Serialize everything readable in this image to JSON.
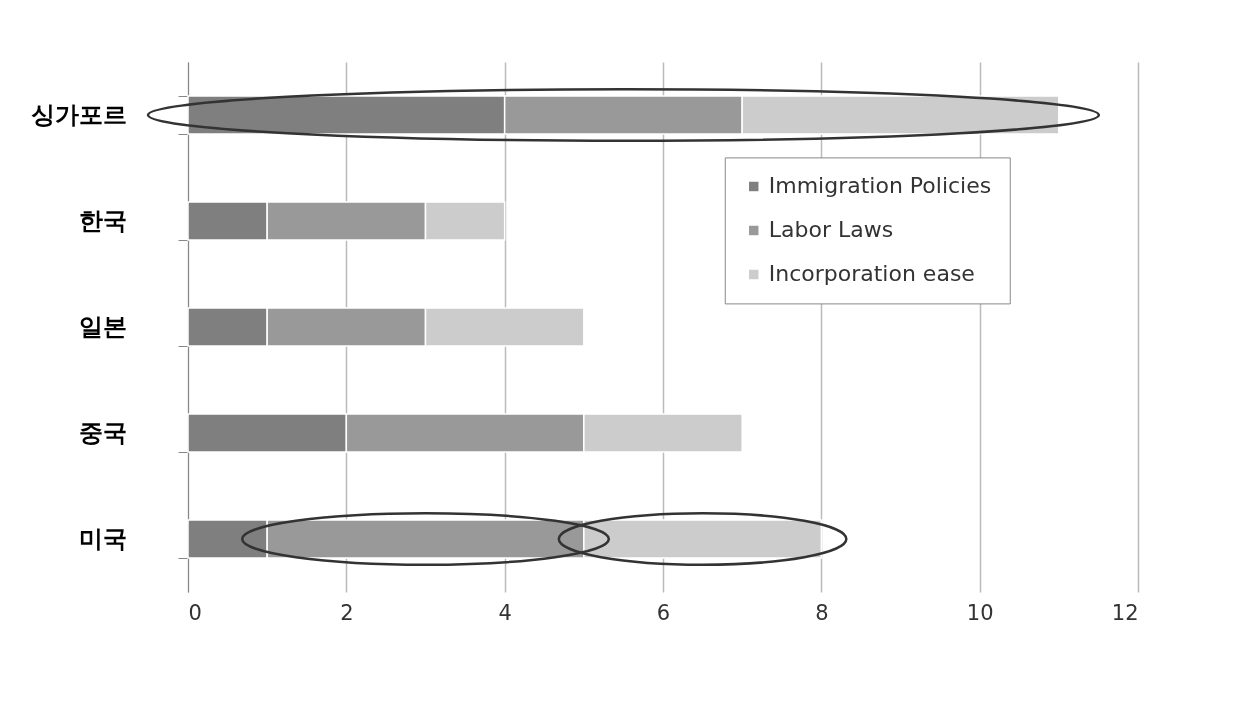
{
  "chart_data": {
    "type": "bar",
    "orientation": "horizontal",
    "stacked": true,
    "categories": [
      "싱가포르",
      "한국",
      "일본",
      "중국",
      "미국"
    ],
    "series": [
      {
        "name": "Immigration Policies",
        "color": "#7f7f7f",
        "values": [
          4,
          1,
          1,
          2,
          1
        ]
      },
      {
        "name": "Labor Laws",
        "color": "#999999",
        "values": [
          3,
          2,
          2,
          3,
          4
        ]
      },
      {
        "name": "Incorporation ease",
        "color": "#cccccc",
        "values": [
          4,
          1,
          2,
          2,
          3
        ]
      }
    ],
    "xlim": [
      0,
      12
    ],
    "xticks": [
      0,
      2,
      4,
      6,
      8,
      10,
      12
    ],
    "grid": "x",
    "legend": "top right"
  }
}
